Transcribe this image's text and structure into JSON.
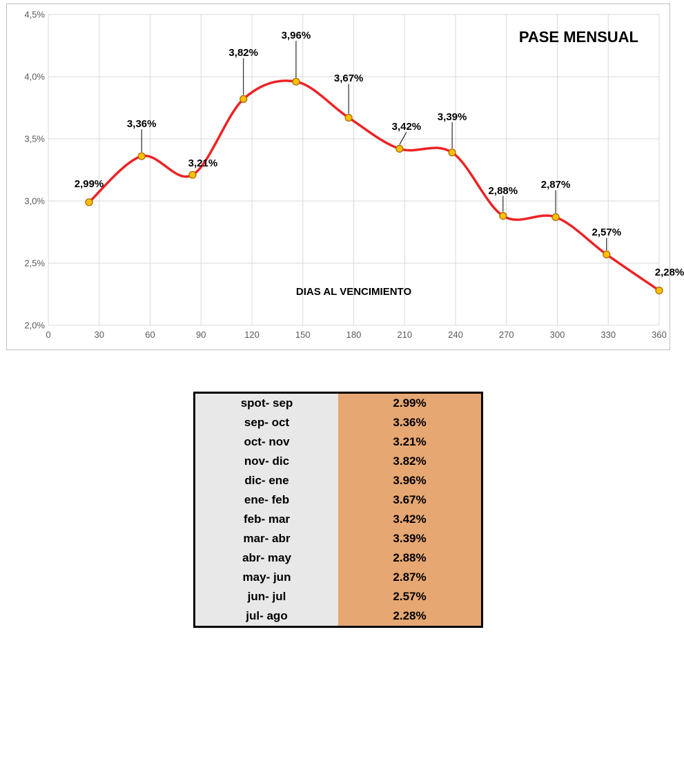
{
  "chart": {
    "type": "line",
    "title": "PASE MENSUAL",
    "x_axis_label": "DIAS AL VENCIMIENTO",
    "line_color": "#ed2224",
    "line_width": 3.5,
    "marker_fill": "#ffc000",
    "marker_stroke": "#a66400",
    "marker_radius": 5,
    "background_color": "#ffffff",
    "grid_color": "#d9d9d9",
    "border_color": "#c0c0c0",
    "tick_label_color": "#595959",
    "tick_fontsize": 13,
    "label_fontsize": 15,
    "label_fontweight": "bold",
    "title_fontsize": 22,
    "xlim": [
      0,
      360
    ],
    "ylim": [
      2.0,
      4.5
    ],
    "xtick_step": 30,
    "xticks": [
      "0",
      "30",
      "60",
      "90",
      "120",
      "150",
      "180",
      "210",
      "240",
      "270",
      "300",
      "330",
      "360"
    ],
    "ytick_step": 0.5,
    "yticks": [
      "2,0%",
      "2,5%",
      "3,0%",
      "3,5%",
      "4,0%",
      "4,5%"
    ],
    "x_values": [
      24,
      55,
      85,
      115,
      146,
      177,
      207,
      238,
      268,
      299,
      329,
      360
    ],
    "y_values": [
      2.99,
      3.36,
      3.21,
      3.82,
      3.96,
      3.67,
      3.42,
      3.39,
      2.88,
      2.87,
      2.57,
      2.28
    ],
    "data_labels": [
      "2,99%",
      "3,36%",
      "3,21%",
      "3,82%",
      "3,96%",
      "3,67%",
      "3,42%",
      "3,39%",
      "2,88%",
      "2,87%",
      "2,57%",
      "2,28%"
    ],
    "label_offsets_y": [
      -35,
      -55,
      -25,
      -75,
      -75,
      -65,
      -40,
      -60,
      -45,
      -55,
      -40,
      -35
    ],
    "label_offsets_x": [
      0,
      0,
      15,
      0,
      0,
      0,
      10,
      0,
      0,
      0,
      0,
      15
    ],
    "leader_lines": [
      false,
      true,
      false,
      true,
      true,
      true,
      true,
      true,
      true,
      true,
      true,
      false
    ]
  },
  "table": {
    "col1_bg": "#e8e8e8",
    "col2_bg": "#e6a772",
    "border_color": "#000000",
    "border_width": 3,
    "fontsize": 17,
    "fontweight": "bold",
    "rows": [
      {
        "label": "spot- sep",
        "value": "2.99%"
      },
      {
        "label": "sep- oct",
        "value": "3.36%"
      },
      {
        "label": "oct- nov",
        "value": "3.21%"
      },
      {
        "label": "nov- dic",
        "value": "3.82%"
      },
      {
        "label": "dic- ene",
        "value": "3.96%"
      },
      {
        "label": "ene- feb",
        "value": "3.67%"
      },
      {
        "label": "feb- mar",
        "value": "3.42%"
      },
      {
        "label": "mar- abr",
        "value": "3.39%"
      },
      {
        "label": "abr- may",
        "value": "2.88%"
      },
      {
        "label": "may- jun",
        "value": "2.87%"
      },
      {
        "label": "jun- jul",
        "value": "2.57%"
      },
      {
        "label": "jul- ago",
        "value": "2.28%"
      }
    ]
  }
}
